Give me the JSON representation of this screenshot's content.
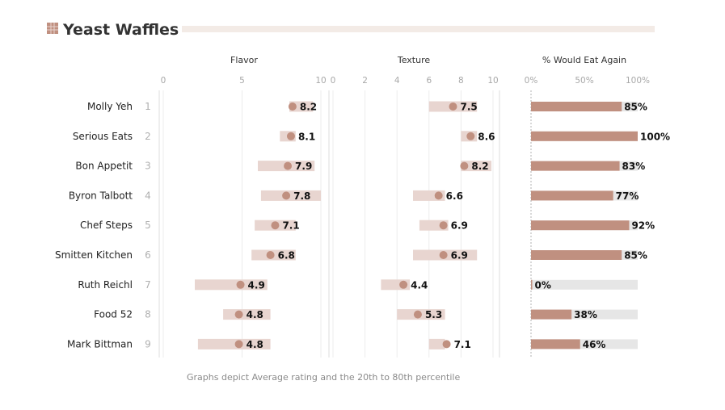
{
  "chart_data": {
    "type": "bar",
    "title": "Yeast Waffles",
    "footnote": "Graphs depict Average rating and the 20th to 80th percentile",
    "panels": [
      {
        "name": "Flavor",
        "ticks": [
          "0",
          "5",
          "10"
        ],
        "xlim": [
          0,
          10
        ]
      },
      {
        "name": "Texture",
        "ticks": [
          "0",
          "2",
          "4",
          "6",
          "8",
          "10"
        ],
        "xlim": [
          0,
          10
        ]
      },
      {
        "name": "% Would Eat Again",
        "ticks": [
          "0%",
          "50%",
          "100%"
        ],
        "xlim": [
          0,
          100
        ]
      }
    ],
    "rows": [
      {
        "rank": "1",
        "name": "Molly Yeh",
        "flavor": {
          "avg": 8.2,
          "p20": 8.0,
          "p80": 9.5,
          "label": "8.2"
        },
        "texture": {
          "avg": 7.5,
          "p20": 6.0,
          "p80": 9.0,
          "label": "7.5"
        },
        "eat_again": {
          "value": 85,
          "label": "85%"
        }
      },
      {
        "rank": "2",
        "name": "Serious Eats",
        "flavor": {
          "avg": 8.1,
          "p20": 7.4,
          "p80": 8.4,
          "label": "8.1"
        },
        "texture": {
          "avg": 8.6,
          "p20": 8.0,
          "p80": 9.0,
          "label": "8.6"
        },
        "eat_again": {
          "value": 100,
          "label": "100%"
        }
      },
      {
        "rank": "3",
        "name": "Bon Appetit",
        "flavor": {
          "avg": 7.9,
          "p20": 6.0,
          "p80": 9.6,
          "label": "7.9"
        },
        "texture": {
          "avg": 8.2,
          "p20": 8.0,
          "p80": 9.9,
          "label": "8.2"
        },
        "eat_again": {
          "value": 83,
          "label": "83%"
        }
      },
      {
        "rank": "4",
        "name": "Byron Talbott",
        "flavor": {
          "avg": 7.8,
          "p20": 6.2,
          "p80": 10.0,
          "label": "7.8"
        },
        "texture": {
          "avg": 6.6,
          "p20": 5.0,
          "p80": 7.0,
          "label": "6.6"
        },
        "eat_again": {
          "value": 77,
          "label": "77%"
        }
      },
      {
        "rank": "5",
        "name": "Chef Steps",
        "flavor": {
          "avg": 7.1,
          "p20": 5.8,
          "p80": 8.4,
          "label": "7.1"
        },
        "texture": {
          "avg": 6.9,
          "p20": 5.4,
          "p80": 7.2,
          "label": "6.9"
        },
        "eat_again": {
          "value": 92,
          "label": "92%"
        }
      },
      {
        "rank": "6",
        "name": "Smitten Kitchen",
        "flavor": {
          "avg": 6.8,
          "p20": 5.6,
          "p80": 8.4,
          "label": "6.8"
        },
        "texture": {
          "avg": 6.9,
          "p20": 5.0,
          "p80": 9.0,
          "label": "6.9"
        },
        "eat_again": {
          "value": 85,
          "label": "85%"
        }
      },
      {
        "rank": "7",
        "name": "Ruth Reichl",
        "flavor": {
          "avg": 4.9,
          "p20": 2.0,
          "p80": 6.6,
          "label": "4.9"
        },
        "texture": {
          "avg": 4.4,
          "p20": 3.0,
          "p80": 4.8,
          "label": "4.4"
        },
        "eat_again": {
          "value": 0,
          "label": "0%"
        }
      },
      {
        "rank": "8",
        "name": "Food 52",
        "flavor": {
          "avg": 4.8,
          "p20": 3.8,
          "p80": 6.8,
          "label": "4.8"
        },
        "texture": {
          "avg": 5.3,
          "p20": 4.0,
          "p80": 7.0,
          "label": "5.3"
        },
        "eat_again": {
          "value": 38,
          "label": "38%"
        }
      },
      {
        "rank": "9",
        "name": "Mark Bittman",
        "flavor": {
          "avg": 4.8,
          "p20": 2.2,
          "p80": 6.8,
          "label": "4.8"
        },
        "texture": {
          "avg": 7.1,
          "p20": 6.0,
          "p80": 7.0,
          "label": "7.1"
        },
        "eat_again": {
          "value": 46,
          "label": "46%"
        }
      }
    ],
    "grid": true,
    "colors": {
      "accent": "#c09080",
      "range_band": "#e8d5d0",
      "bar_background": "#e6e6e6",
      "title_rule": "#f3ebe6",
      "grid": "#ececec"
    }
  }
}
